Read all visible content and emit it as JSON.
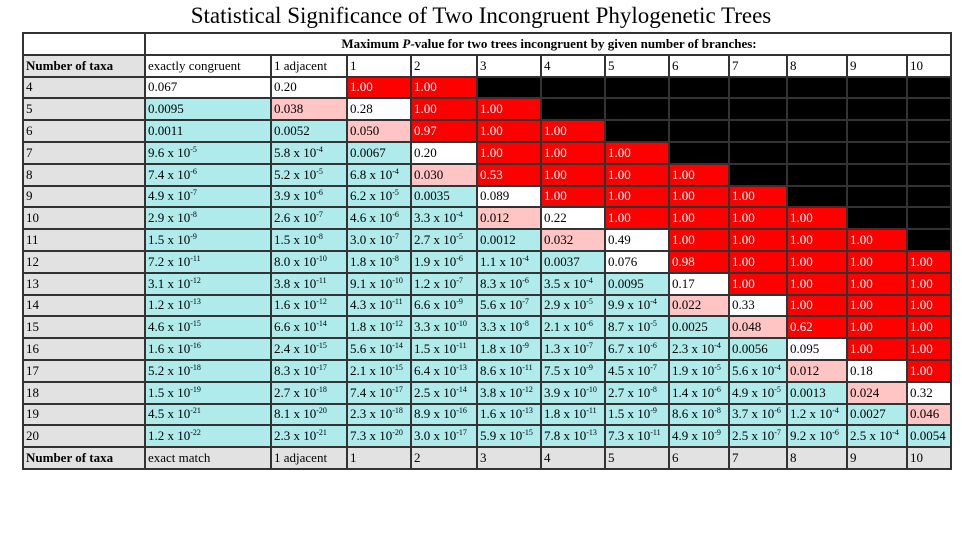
{
  "title": "Statistical Significance of Two Incongruent Phylogenetic Trees",
  "super_header": {
    "prefix": "Maximum ",
    "italic": "P",
    "suffix": "-value for two trees incongruent by given number of branches:"
  },
  "row_header_label": "Number of taxa",
  "top_columns": [
    "exactly congruent",
    "1 adjacent",
    "1",
    "2",
    "3",
    "4",
    "5",
    "6",
    "7",
    "8",
    "9",
    "10"
  ],
  "bottom_columns": [
    "exact match",
    "1 adjacent",
    "1",
    "2",
    "3",
    "4",
    "5",
    "6",
    "7",
    "8",
    "9",
    "10"
  ],
  "colors": {
    "white": "#ffffff",
    "cyan": "#b0ebeb",
    "pink": "#ffc4c4",
    "red": "#ff0000",
    "black": "#000000",
    "header_gray": "#e2e2e2"
  },
  "rows": [
    {
      "taxa": "4",
      "cells": [
        [
          "0.067",
          "w"
        ],
        [
          "0.20",
          "w"
        ],
        [
          "1.00",
          "r"
        ],
        [
          "1.00",
          "r"
        ],
        [
          "",
          "k"
        ],
        [
          "",
          "k"
        ],
        [
          "",
          "k"
        ],
        [
          "",
          "k"
        ],
        [
          "",
          "k"
        ],
        [
          "",
          "k"
        ],
        [
          "",
          "k"
        ],
        [
          "",
          "k"
        ]
      ]
    },
    {
      "taxa": "5",
      "cells": [
        [
          "0.0095",
          "c"
        ],
        [
          "0.038",
          "p"
        ],
        [
          "0.28",
          "w"
        ],
        [
          "1.00",
          "r"
        ],
        [
          "1.00",
          "r"
        ],
        [
          "",
          "k"
        ],
        [
          "",
          "k"
        ],
        [
          "",
          "k"
        ],
        [
          "",
          "k"
        ],
        [
          "",
          "k"
        ],
        [
          "",
          "k"
        ],
        [
          "",
          "k"
        ]
      ]
    },
    {
      "taxa": "6",
      "cells": [
        [
          "0.0011",
          "c"
        ],
        [
          "0.0052",
          "c"
        ],
        [
          "0.050",
          "p"
        ],
        [
          "0.97",
          "r"
        ],
        [
          "1.00",
          "r"
        ],
        [
          "1.00",
          "r"
        ],
        [
          "",
          "k"
        ],
        [
          "",
          "k"
        ],
        [
          "",
          "k"
        ],
        [
          "",
          "k"
        ],
        [
          "",
          "k"
        ],
        [
          "",
          "k"
        ]
      ]
    },
    {
      "taxa": "7",
      "cells": [
        [
          "9.6 x 10^-5",
          "c"
        ],
        [
          "5.8 x 10^-4",
          "c"
        ],
        [
          "0.0067",
          "c"
        ],
        [
          "0.20",
          "w"
        ],
        [
          "1.00",
          "r"
        ],
        [
          "1.00",
          "r"
        ],
        [
          "1.00",
          "r"
        ],
        [
          "",
          "k"
        ],
        [
          "",
          "k"
        ],
        [
          "",
          "k"
        ],
        [
          "",
          "k"
        ],
        [
          "",
          "k"
        ]
      ]
    },
    {
      "taxa": "8",
      "cells": [
        [
          "7.4 x 10^-6",
          "c"
        ],
        [
          "5.2 x 10^-5",
          "c"
        ],
        [
          "6.8 x 10^-4",
          "c"
        ],
        [
          "0.030",
          "p"
        ],
        [
          "0.53",
          "r"
        ],
        [
          "1.00",
          "r"
        ],
        [
          "1.00",
          "r"
        ],
        [
          "1.00",
          "r"
        ],
        [
          "",
          "k"
        ],
        [
          "",
          "k"
        ],
        [
          "",
          "k"
        ],
        [
          "",
          "k"
        ]
      ]
    },
    {
      "taxa": "9",
      "cells": [
        [
          "4.9 x 10^-7",
          "c"
        ],
        [
          "3.9 x 10^-6",
          "c"
        ],
        [
          "6.2 x 10^-5",
          "c"
        ],
        [
          "0.0035",
          "c"
        ],
        [
          "0.089",
          "w"
        ],
        [
          "1.00",
          "r"
        ],
        [
          "1.00",
          "r"
        ],
        [
          "1.00",
          "r"
        ],
        [
          "1.00",
          "r"
        ],
        [
          "",
          "k"
        ],
        [
          "",
          "k"
        ],
        [
          "",
          "k"
        ]
      ]
    },
    {
      "taxa": "10",
      "cells": [
        [
          "2.9 x 10^-8",
          "c"
        ],
        [
          "2.6 x 10^-7",
          "c"
        ],
        [
          "4.6 x 10^-6",
          "c"
        ],
        [
          "3.3 x 10^-4",
          "c"
        ],
        [
          "0.012",
          "p"
        ],
        [
          "0.22",
          "w"
        ],
        [
          "1.00",
          "r"
        ],
        [
          "1.00",
          "r"
        ],
        [
          "1.00",
          "r"
        ],
        [
          "1.00",
          "r"
        ],
        [
          "",
          "k"
        ],
        [
          "",
          "k"
        ]
      ]
    },
    {
      "taxa": "11",
      "cells": [
        [
          "1.5 x 10^-9",
          "c"
        ],
        [
          "1.5 x 10^-8",
          "c"
        ],
        [
          "3.0 x 10^-7",
          "c"
        ],
        [
          "2.7 x 10^-5",
          "c"
        ],
        [
          "0.0012",
          "c"
        ],
        [
          "0.032",
          "p"
        ],
        [
          "0.49",
          "w"
        ],
        [
          "1.00",
          "r"
        ],
        [
          "1.00",
          "r"
        ],
        [
          "1.00",
          "r"
        ],
        [
          "1.00",
          "r"
        ],
        [
          "",
          "k"
        ]
      ]
    },
    {
      "taxa": "12",
      "cells": [
        [
          "7.2 x 10^-11",
          "c"
        ],
        [
          "8.0 x 10^-10",
          "c"
        ],
        [
          "1.8 x 10^-8",
          "c"
        ],
        [
          "1.9 x 10^-6",
          "c"
        ],
        [
          "1.1 x 10^-4",
          "c"
        ],
        [
          "0.0037",
          "c"
        ],
        [
          "0.076",
          "w"
        ],
        [
          "0.98",
          "r"
        ],
        [
          "1.00",
          "r"
        ],
        [
          "1.00",
          "r"
        ],
        [
          "1.00",
          "r"
        ],
        [
          "1.00",
          "r"
        ]
      ]
    },
    {
      "taxa": "13",
      "cells": [
        [
          "3.1 x 10^-12",
          "c"
        ],
        [
          "3.8 x 10^-11",
          "c"
        ],
        [
          "9.1 x 10^-10",
          "c"
        ],
        [
          "1.2 x 10^-7",
          "c"
        ],
        [
          "8.3 x 10^-6",
          "c"
        ],
        [
          "3.5 x 10^-4",
          "c"
        ],
        [
          "0.0095",
          "c"
        ],
        [
          "0.17",
          "w"
        ],
        [
          "1.00",
          "r"
        ],
        [
          "1.00",
          "r"
        ],
        [
          "1.00",
          "r"
        ],
        [
          "1.00",
          "r"
        ]
      ]
    },
    {
      "taxa": "14",
      "cells": [
        [
          "1.2 x 10^-13",
          "c"
        ],
        [
          "1.6 x 10^-12",
          "c"
        ],
        [
          "4.3 x 10^-11",
          "c"
        ],
        [
          "6.6 x 10^-9",
          "c"
        ],
        [
          "5.6 x 10^-7",
          "c"
        ],
        [
          "2.9 x 10^-5",
          "c"
        ],
        [
          "9.9 x 10^-4",
          "c"
        ],
        [
          "0.022",
          "p"
        ],
        [
          "0.33",
          "w"
        ],
        [
          "1.00",
          "r"
        ],
        [
          "1.00",
          "r"
        ],
        [
          "1.00",
          "r"
        ]
      ]
    },
    {
      "taxa": "15",
      "cells": [
        [
          "4.6 x 10^-15",
          "c"
        ],
        [
          "6.6 x 10^-14",
          "c"
        ],
        [
          "1.8 x 10^-12",
          "c"
        ],
        [
          "3.3 x 10^-10",
          "c"
        ],
        [
          "3.3 x 10^-8",
          "c"
        ],
        [
          "2.1 x 10^-6",
          "c"
        ],
        [
          "8.7 x 10^-5",
          "c"
        ],
        [
          "0.0025",
          "c"
        ],
        [
          "0.048",
          "p"
        ],
        [
          "0.62",
          "r"
        ],
        [
          "1.00",
          "r"
        ],
        [
          "1.00",
          "r"
        ]
      ]
    },
    {
      "taxa": "16",
      "cells": [
        [
          "1.6 x 10^-16",
          "c"
        ],
        [
          "2.4 x 10^-15",
          "c"
        ],
        [
          "5.6 x 10^-14",
          "c"
        ],
        [
          "1.5 x 10^-11",
          "c"
        ],
        [
          "1.8 x 10^-9",
          "c"
        ],
        [
          "1.3 x 10^-7",
          "c"
        ],
        [
          "6.7 x 10^-6",
          "c"
        ],
        [
          "2.3 x 10^-4",
          "c"
        ],
        [
          "0.0056",
          "c"
        ],
        [
          "0.095",
          "w"
        ],
        [
          "1.00",
          "r"
        ],
        [
          "1.00",
          "r"
        ]
      ]
    },
    {
      "taxa": "17",
      "cells": [
        [
          "5.2 x 10^-18",
          "c"
        ],
        [
          "8.3 x 10^-17",
          "c"
        ],
        [
          "2.1 x 10^-15",
          "c"
        ],
        [
          "6.4 x 10^-13",
          "c"
        ],
        [
          "8.6 x 10^-11",
          "c"
        ],
        [
          "7.5 x 10^-9",
          "c"
        ],
        [
          "4.5 x 10^-7",
          "c"
        ],
        [
          "1.9 x 10^-5",
          "c"
        ],
        [
          "5.6 x 10^-4",
          "c"
        ],
        [
          "0.012",
          "p"
        ],
        [
          "0.18",
          "w"
        ],
        [
          "1.00",
          "r"
        ]
      ]
    },
    {
      "taxa": "18",
      "cells": [
        [
          "1.5 x 10^-19",
          "c"
        ],
        [
          "2.7 x 10^-18",
          "c"
        ],
        [
          "7.4 x 10^-17",
          "c"
        ],
        [
          "2.5 x 10^-14",
          "c"
        ],
        [
          "3.8 x 10^-12",
          "c"
        ],
        [
          "3.9 x 10^-10",
          "c"
        ],
        [
          "2.7 x 10^-8",
          "c"
        ],
        [
          "1.4 x 10^-6",
          "c"
        ],
        [
          "4.9 x 10^-5",
          "c"
        ],
        [
          "0.0013",
          "c"
        ],
        [
          "0.024",
          "p"
        ],
        [
          "0.32",
          "w"
        ]
      ]
    },
    {
      "taxa": "19",
      "cells": [
        [
          "4.5 x 10^-21",
          "c"
        ],
        [
          "8.1 x 10^-20",
          "c"
        ],
        [
          "2.3 x 10^-18",
          "c"
        ],
        [
          "8.9 x 10^-16",
          "c"
        ],
        [
          "1.6 x 10^-13",
          "c"
        ],
        [
          "1.8 x 10^-11",
          "c"
        ],
        [
          "1.5 x 10^-9",
          "c"
        ],
        [
          "8.6 x 10^-8",
          "c"
        ],
        [
          "3.7 x 10^-6",
          "c"
        ],
        [
          "1.2 x 10^-4",
          "c"
        ],
        [
          "0.0027",
          "c"
        ],
        [
          "0.046",
          "p"
        ]
      ]
    },
    {
      "taxa": "20",
      "cells": [
        [
          "1.2 x 10^-22",
          "c"
        ],
        [
          "2.3 x 10^-21",
          "c"
        ],
        [
          "7.3 x 10^-20",
          "c"
        ],
        [
          "3.0 x 10^-17",
          "c"
        ],
        [
          "5.9 x 10^-15",
          "c"
        ],
        [
          "7.8 x 10^-13",
          "c"
        ],
        [
          "7.3 x 10^-11",
          "c"
        ],
        [
          "4.9 x 10^-9",
          "c"
        ],
        [
          "2.5 x 10^-7",
          "c"
        ],
        [
          "9.2 x 10^-6",
          "c"
        ],
        [
          "2.5 x 10^-4",
          "c"
        ],
        [
          "0.0054",
          "c"
        ]
      ]
    }
  ]
}
